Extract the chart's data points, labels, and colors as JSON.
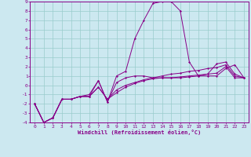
{
  "xlabel": "Windchill (Refroidissement éolien,°C)",
  "bg_color": "#cce8f0",
  "line_color": "#880088",
  "grid_color": "#99cccc",
  "xmin": 0,
  "xmax": 23,
  "ymin": -4,
  "ymax": 9,
  "series": [
    [
      -2,
      -4,
      -3.5,
      -1.5,
      -1.5,
      -1.2,
      -1.2,
      -0.2,
      -1.5,
      -0.8,
      -0.2,
      0.2,
      0.5,
      0.7,
      0.8,
      0.8,
      0.9,
      1.0,
      1.1,
      1.2,
      1.3,
      2.0,
      0.8,
      0.8
    ],
    [
      -2,
      -4,
      -3.5,
      -1.5,
      -1.5,
      -1.2,
      -1.2,
      -0.2,
      -1.5,
      -0.5,
      0.0,
      0.3,
      0.6,
      0.8,
      1.0,
      1.2,
      1.3,
      1.5,
      1.6,
      1.8,
      1.9,
      2.2,
      1.0,
      0.8
    ],
    [
      -2,
      -4,
      -3.5,
      -1.5,
      -1.5,
      -1.2,
      -1.0,
      0.5,
      -1.8,
      0.3,
      0.8,
      1.0,
      1.0,
      0.8,
      0.8,
      0.8,
      0.8,
      0.9,
      1.0,
      1.0,
      1.0,
      1.8,
      2.2,
      0.8
    ],
    [
      -2,
      -4,
      -3.5,
      -1.5,
      -1.5,
      -1.2,
      -1.2,
      0.5,
      -1.8,
      1.0,
      1.5,
      5.0,
      7.0,
      8.8,
      9.0,
      9.0,
      8.0,
      2.5,
      1.0,
      1.2,
      2.3,
      2.5,
      1.2,
      0.8
    ]
  ]
}
